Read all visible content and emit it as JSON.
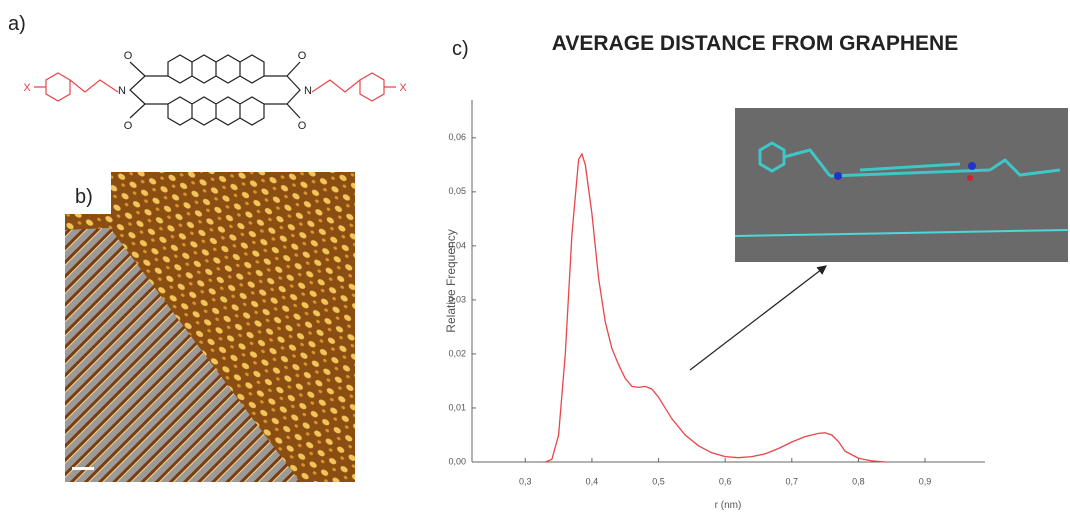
{
  "panel_labels": [
    "a)",
    "b)",
    "c)"
  ],
  "structure": {
    "substituents": [
      "X",
      "X"
    ],
    "oxygens": [
      "O",
      "O",
      "O",
      "O"
    ],
    "nitrogens": [
      "N",
      "N"
    ]
  },
  "chart_data": {
    "type": "line",
    "title": "AVERAGE DISTANCE FROM GRAPHENE",
    "x_label": "r (nm)",
    "y_label": "Relative Frequency",
    "x": [
      0.33,
      0.34,
      0.35,
      0.36,
      0.37,
      0.38,
      0.385,
      0.39,
      0.4,
      0.41,
      0.42,
      0.43,
      0.44,
      0.45,
      0.46,
      0.47,
      0.48,
      0.49,
      0.5,
      0.52,
      0.54,
      0.56,
      0.58,
      0.6,
      0.62,
      0.64,
      0.66,
      0.68,
      0.7,
      0.72,
      0.74,
      0.75,
      0.76,
      0.77,
      0.78,
      0.8,
      0.82,
      0.84
    ],
    "values": [
      0,
      0.0005,
      0.005,
      0.02,
      0.042,
      0.056,
      0.057,
      0.055,
      0.046,
      0.034,
      0.026,
      0.021,
      0.018,
      0.0155,
      0.014,
      0.0138,
      0.014,
      0.0135,
      0.012,
      0.008,
      0.005,
      0.003,
      0.0017,
      0.001,
      0.0008,
      0.001,
      0.0015,
      0.0025,
      0.0037,
      0.0047,
      0.0053,
      0.0054,
      0.005,
      0.0038,
      0.002,
      0.0007,
      0.0002,
      0
    ],
    "color": "#e8454a",
    "xlim": [
      0.22,
      0.99
    ],
    "ylim": [
      0,
      0.067
    ],
    "xticks": [
      {
        "value": 0.3,
        "label": "0,3"
      },
      {
        "value": 0.4,
        "label": "0,4"
      },
      {
        "value": 0.5,
        "label": "0,5"
      },
      {
        "value": 0.6,
        "label": "0,6"
      },
      {
        "value": 0.7,
        "label": "0,7"
      },
      {
        "value": 0.8,
        "label": "0,8"
      },
      {
        "value": 0.9,
        "label": "0,9"
      }
    ],
    "yticks": [
      {
        "value": 0,
        "label": "0,00"
      },
      {
        "value": 0.01,
        "label": "0,01"
      },
      {
        "value": 0.02,
        "label": "0,02"
      },
      {
        "value": 0.03,
        "label": "0,03"
      },
      {
        "value": 0.04,
        "label": "0,04"
      },
      {
        "value": 0.05,
        "label": "0,05"
      },
      {
        "value": 0.06,
        "label": "0,06"
      }
    ],
    "grid": false
  }
}
